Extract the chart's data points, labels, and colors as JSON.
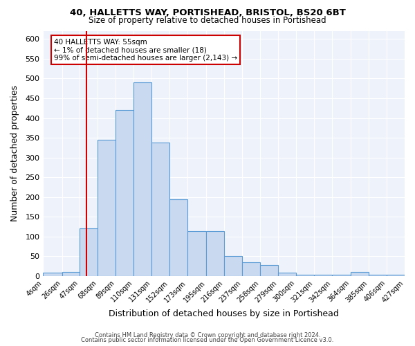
{
  "title_line1": "40, HALLETTS WAY, PORTISHEAD, BRISTOL, BS20 6BT",
  "title_line2": "Size of property relative to detached houses in Portishead",
  "xlabel": "Distribution of detached houses by size in Portishead",
  "ylabel": "Number of detached properties",
  "bar_color": "#c9d9f0",
  "bar_edge_color": "#5b9bd5",
  "background_color": "#eef3fb",
  "grid_color": "#ffffff",
  "vline_x": 55,
  "vline_color": "#cc0000",
  "annotation_text": "40 HALLETTS WAY: 55sqm\n← 1% of detached houses are smaller (18)\n99% of semi-detached houses are larger (2,143) →",
  "annotation_box_color": "#cc0000",
  "footer_line1": "Contains HM Land Registry data © Crown copyright and database right 2024.",
  "footer_line2": "Contains public sector information licensed under the Open Government Licence v3.0.",
  "bin_edges": [
    4,
    26,
    47,
    68,
    89,
    110,
    131,
    152,
    173,
    195,
    216,
    237,
    258,
    279,
    300,
    321,
    342,
    364,
    385,
    406,
    427
  ],
  "bin_labels": [
    "4sqm",
    "26sqm",
    "47sqm",
    "68sqm",
    "89sqm",
    "110sqm",
    "131sqm",
    "152sqm",
    "173sqm",
    "195sqm",
    "216sqm",
    "237sqm",
    "258sqm",
    "279sqm",
    "300sqm",
    "321sqm",
    "342sqm",
    "364sqm",
    "385sqm",
    "406sqm",
    "427sqm"
  ],
  "bar_heights": [
    8,
    10,
    120,
    345,
    420,
    490,
    338,
    195,
    113,
    113,
    50,
    35,
    28,
    8,
    3,
    3,
    3,
    10,
    3,
    3
  ],
  "ylim": [
    0,
    620
  ],
  "yticks": [
    0,
    50,
    100,
    150,
    200,
    250,
    300,
    350,
    400,
    450,
    500,
    550,
    600
  ]
}
